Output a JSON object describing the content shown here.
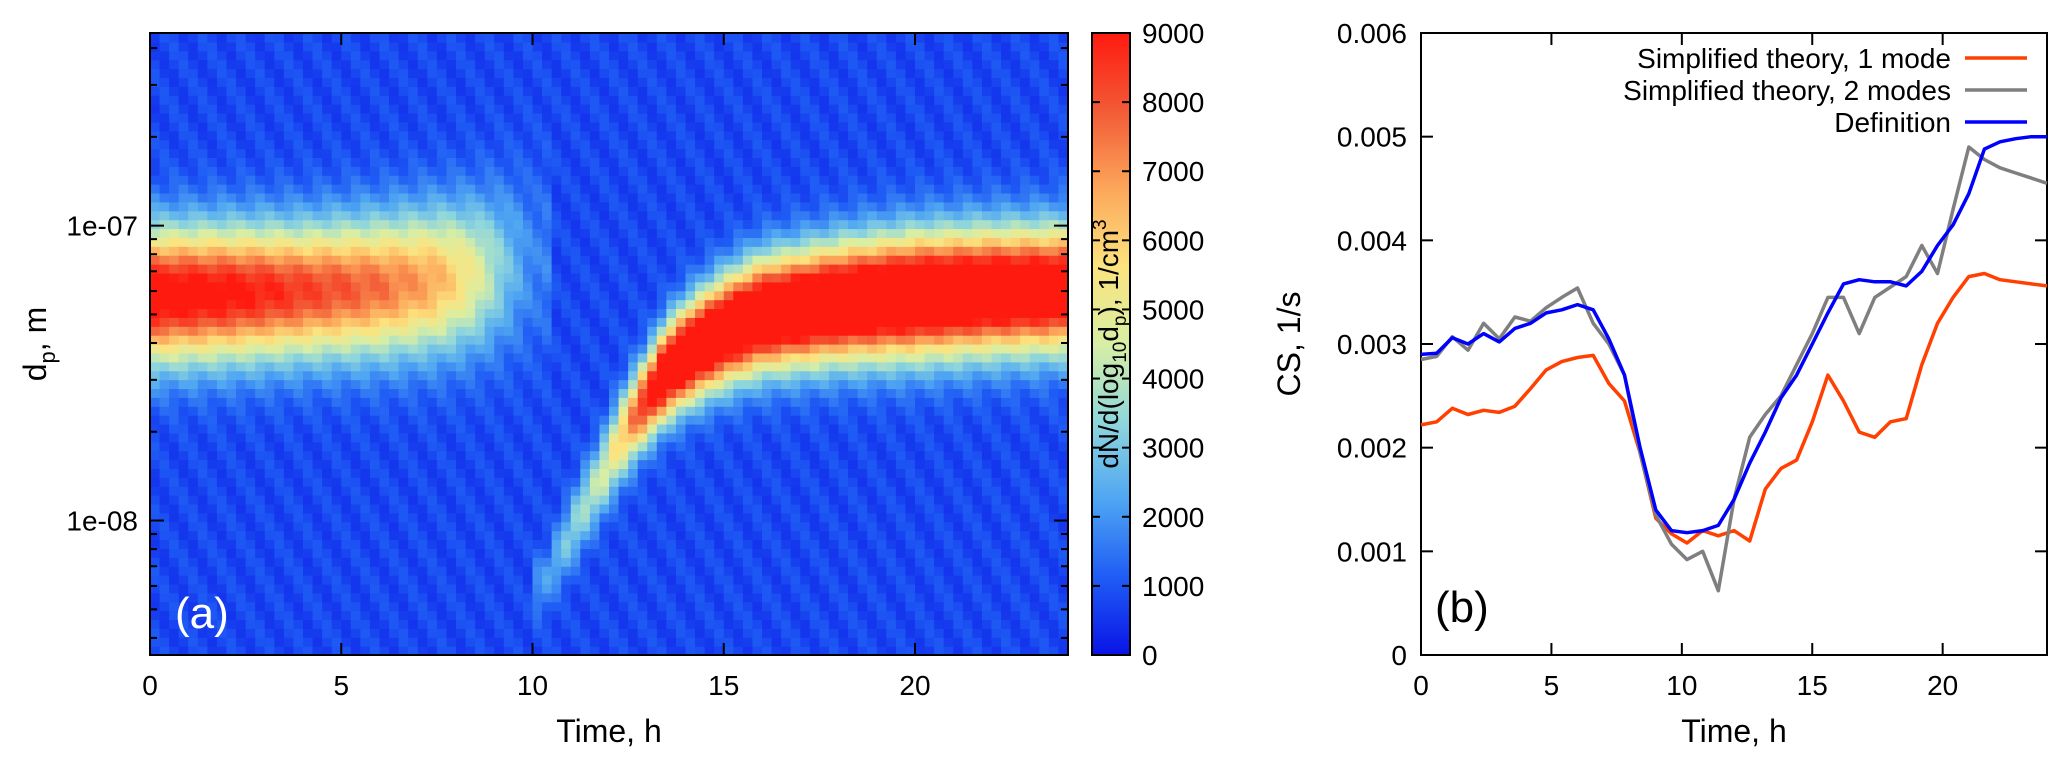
{
  "chart_data": [
    {
      "type": "heatmap",
      "panel_label": "(a)",
      "xlabel": "Time, h",
      "ylabel_main": "d",
      "ylabel_sub": "p",
      "ylabel_rest": ", m",
      "x_ticks": [
        "0",
        "5",
        "10",
        "15",
        "20"
      ],
      "x_tick_values": [
        0,
        5,
        10,
        15,
        20
      ],
      "xlim": [
        0,
        24
      ],
      "y_scale": "log",
      "ylim": [
        3.5e-09,
        4.5e-07
      ],
      "y_ticks": [
        "1e-08",
        "1e-07"
      ],
      "y_tick_values": [
        1e-08,
        1e-07
      ],
      "colorbar": {
        "label_parts": [
          "dN/d(log",
          "10",
          "d",
          "p",
          "), 1/cm",
          "3"
        ],
        "ticks": [
          "0",
          "1000",
          "2000",
          "3000",
          "4000",
          "5000",
          "6000",
          "7000",
          "8000",
          "9000"
        ],
        "tick_values": [
          0,
          1000,
          2000,
          3000,
          4000,
          5000,
          6000,
          7000,
          8000,
          9000
        ],
        "range": [
          0,
          9000
        ],
        "colors": [
          "#0a14e6",
          "#1f5cf5",
          "#4fa6f2",
          "#8fd6dc",
          "#d8eea4",
          "#fce37e",
          "#fca65a",
          "#f25a36",
          "#ff1a10"
        ]
      },
      "modes": [
        {
          "description": "mode present before event",
          "time": [
            0,
            2,
            4,
            6,
            7.5,
            8.5,
            9.3,
            10
          ],
          "center_diameter": [
            5.8e-08,
            5.9e-08,
            6e-08,
            6.2e-08,
            6.5e-08,
            6.8e-08,
            7.2e-08,
            7.5e-08
          ],
          "peak_concentration": [
            9000,
            8500,
            7600,
            6800,
            5800,
            4200,
            2200,
            900
          ],
          "log_width": [
            0.22,
            0.22,
            0.22,
            0.23,
            0.24,
            0.25,
            0.27,
            0.3
          ]
        },
        {
          "description": "new particle formation and growth",
          "time": [
            10.3,
            11,
            11.8,
            12.4,
            13,
            13.5,
            14.2,
            15,
            16,
            18,
            20,
            22,
            24
          ],
          "center_diameter": [
            6e-09,
            9e-09,
            1.4e-08,
            2e-08,
            2.6e-08,
            3.2e-08,
            3.8e-08,
            4.4e-08,
            5e-08,
            5.5e-08,
            5.8e-08,
            6e-08,
            6.1e-08
          ],
          "peak_concentration": [
            1200,
            2400,
            3600,
            5500,
            8500,
            10500,
            11000,
            11000,
            11000,
            11000,
            11000,
            10500,
            10000
          ],
          "log_width": [
            0.1,
            0.12,
            0.13,
            0.14,
            0.14,
            0.15,
            0.16,
            0.17,
            0.18,
            0.19,
            0.2,
            0.2,
            0.2
          ]
        }
      ],
      "background_level": 800
    },
    {
      "type": "line",
      "panel_label": "(b)",
      "xlabel": "Time, h",
      "ylabel": "CS, 1/s",
      "xlim": [
        0,
        24
      ],
      "ylim": [
        0,
        0.006
      ],
      "x_ticks": [
        "0",
        "5",
        "10",
        "15",
        "20"
      ],
      "x_tick_values": [
        0,
        5,
        10,
        15,
        20
      ],
      "y_ticks": [
        "0",
        "0.001",
        "0.002",
        "0.003",
        "0.004",
        "0.005",
        "0.006"
      ],
      "y_tick_values": [
        0,
        0.001,
        0.002,
        0.003,
        0.004,
        0.005,
        0.006
      ],
      "legend_position": "top-right",
      "x": [
        0,
        0.6,
        1.2,
        1.8,
        2.4,
        3.0,
        3.6,
        4.2,
        4.8,
        5.4,
        6.0,
        6.6,
        7.2,
        7.8,
        8.4,
        9.0,
        9.6,
        10.2,
        10.8,
        11.4,
        12.0,
        12.6,
        13.2,
        13.8,
        14.4,
        15.0,
        15.6,
        16.2,
        16.8,
        17.4,
        18.0,
        18.6,
        19.2,
        19.8,
        20.4,
        21.0,
        21.6,
        22.2,
        22.8,
        23.4,
        24.0
      ],
      "series": [
        {
          "name": "Simplified theory, 1 mode",
          "color": "#ff4000",
          "values": [
            0.00222,
            0.00225,
            0.00238,
            0.00232,
            0.00236,
            0.00234,
            0.0024,
            0.00257,
            0.00275,
            0.00283,
            0.00287,
            0.00289,
            0.00262,
            0.00245,
            0.00195,
            0.00132,
            0.00117,
            0.00108,
            0.0012,
            0.00115,
            0.0012,
            0.0011,
            0.0016,
            0.0018,
            0.00188,
            0.00225,
            0.0027,
            0.00245,
            0.00215,
            0.0021,
            0.00225,
            0.00228,
            0.0028,
            0.0032,
            0.00345,
            0.00365,
            0.00368,
            0.00362,
            0.0036,
            0.00358,
            0.00356
          ]
        },
        {
          "name": "Simplified theory, 2 modes",
          "color": "#7f7f7f",
          "values": [
            0.00285,
            0.00288,
            0.00307,
            0.00294,
            0.0032,
            0.00305,
            0.00326,
            0.00322,
            0.00335,
            0.00345,
            0.00354,
            0.0032,
            0.003,
            0.0027,
            0.00195,
            0.00135,
            0.00107,
            0.00092,
            0.001,
            0.00062,
            0.0015,
            0.0021,
            0.00232,
            0.0025,
            0.0028,
            0.0031,
            0.00345,
            0.00345,
            0.0031,
            0.00345,
            0.00355,
            0.00365,
            0.00395,
            0.00368,
            0.0043,
            0.0049,
            0.00478,
            0.0047,
            0.00465,
            0.0046,
            0.00455
          ]
        },
        {
          "name": "Definition",
          "color": "#0000ff",
          "values": [
            0.0029,
            0.00291,
            0.00306,
            0.003,
            0.0031,
            0.00302,
            0.00315,
            0.0032,
            0.0033,
            0.00333,
            0.00338,
            0.00333,
            0.00305,
            0.0027,
            0.002,
            0.0014,
            0.0012,
            0.00118,
            0.0012,
            0.00125,
            0.0015,
            0.00185,
            0.00215,
            0.00248,
            0.0027,
            0.003,
            0.0033,
            0.00358,
            0.00362,
            0.0036,
            0.0036,
            0.00356,
            0.0037,
            0.00395,
            0.00415,
            0.00445,
            0.00488,
            0.00495,
            0.00498,
            0.005,
            0.005
          ]
        }
      ]
    }
  ]
}
